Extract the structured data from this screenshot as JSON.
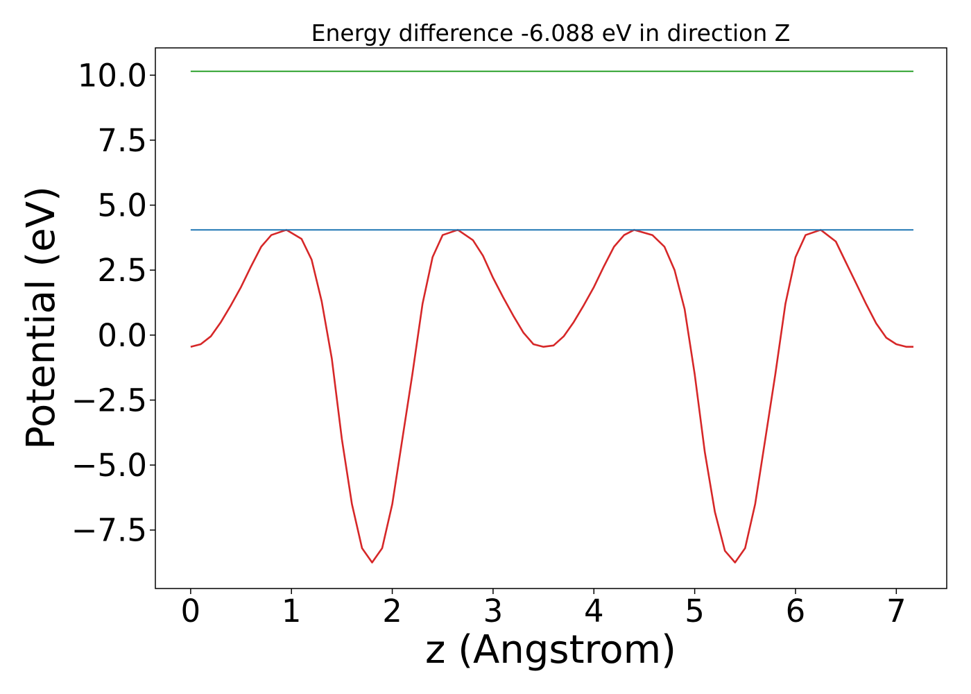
{
  "chart_data": {
    "type": "line",
    "title": "Energy difference -6.088 eV in direction Z",
    "xlabel": "z (Angstrom)",
    "ylabel": "Potential (eV)",
    "xlim": [
      -0.35,
      7.5
    ],
    "ylim": [
      -9.75,
      11.05
    ],
    "xticks": [
      0,
      1,
      2,
      3,
      4,
      5,
      6,
      7
    ],
    "xtick_labels": [
      "0",
      "1",
      "2",
      "3",
      "4",
      "5",
      "6",
      "7"
    ],
    "yticks": [
      -7.5,
      -5.0,
      -2.5,
      0.0,
      2.5,
      5.0,
      7.5,
      10.0
    ],
    "ytick_labels": [
      "−7.5",
      "−5.0",
      "−2.5",
      "0.0",
      "2.5",
      "5.0",
      "7.5",
      "10.0"
    ],
    "grid": false,
    "series": [
      {
        "color": "#d62728",
        "x": [
          0.0,
          0.1,
          0.2,
          0.3,
          0.4,
          0.5,
          0.6,
          0.7,
          0.8,
          0.95,
          1.1,
          1.2,
          1.3,
          1.4,
          1.5,
          1.6,
          1.7,
          1.8,
          1.9,
          2.0,
          2.1,
          2.2,
          2.3,
          2.4,
          2.5,
          2.65,
          2.8,
          2.9,
          3.0,
          3.1,
          3.2,
          3.3,
          3.4,
          3.5,
          3.6,
          3.7,
          3.8,
          3.9,
          4.0,
          4.1,
          4.2,
          4.3,
          4.4,
          4.58,
          4.7,
          4.8,
          4.9,
          5.0,
          5.1,
          5.2,
          5.3,
          5.4,
          5.5,
          5.6,
          5.7,
          5.8,
          5.9,
          6.0,
          6.1,
          6.25,
          6.4,
          6.5,
          6.6,
          6.7,
          6.8,
          6.9,
          7.0,
          7.1,
          7.17
        ],
        "y": [
          -0.45,
          -0.35,
          -0.05,
          0.5,
          1.15,
          1.85,
          2.65,
          3.4,
          3.85,
          4.05,
          3.7,
          2.9,
          1.3,
          -0.9,
          -4.0,
          -6.5,
          -8.2,
          -8.75,
          -8.2,
          -6.5,
          -4.0,
          -1.5,
          1.2,
          3.0,
          3.85,
          4.05,
          3.65,
          3.05,
          2.2,
          1.45,
          0.75,
          0.1,
          -0.35,
          -0.45,
          -0.4,
          -0.05,
          0.5,
          1.15,
          1.85,
          2.65,
          3.4,
          3.85,
          4.05,
          3.85,
          3.4,
          2.5,
          1.0,
          -1.5,
          -4.5,
          -6.8,
          -8.3,
          -8.75,
          -8.2,
          -6.5,
          -4.0,
          -1.5,
          1.2,
          3.0,
          3.85,
          4.05,
          3.6,
          2.8,
          2.0,
          1.2,
          0.45,
          -0.1,
          -0.35,
          -0.45,
          -0.45
        ]
      },
      {
        "color": "#1f77b4",
        "x": [
          0.0,
          7.17
        ],
        "y": [
          4.05,
          4.05
        ]
      },
      {
        "color": "#2ca02c",
        "x": [
          0.0,
          7.17
        ],
        "y": [
          10.15,
          10.15
        ]
      }
    ]
  }
}
